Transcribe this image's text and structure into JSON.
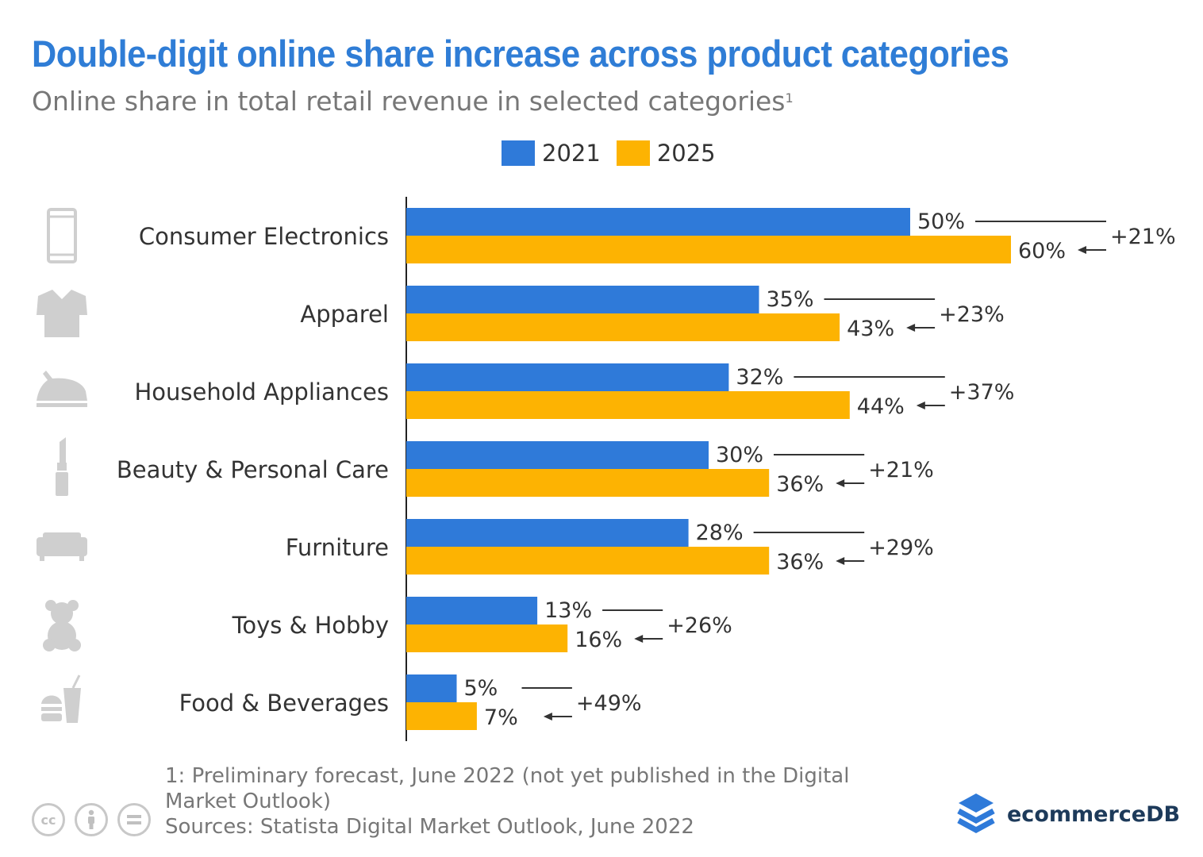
{
  "header": {
    "title": "Double-digit online share increase across product categories",
    "subtitle": "Online share in total retail revenue in selected categories",
    "subtitle_sup": "1"
  },
  "legend": {
    "items": [
      {
        "label": "2021",
        "color": "#2f7ad9"
      },
      {
        "label": "2025",
        "color": "#fdb302"
      }
    ]
  },
  "chart_data": {
    "type": "bar",
    "orientation": "horizontal",
    "categories": [
      "Consumer Electronics",
      "Apparel",
      "Household Appliances",
      "Beauty & Personal Care",
      "Furniture",
      "Toys & Hobby",
      "Food & Beverages"
    ],
    "icons": [
      "smartphone-icon",
      "shirt-icon",
      "iron-icon",
      "lipstick-icon",
      "sofa-icon",
      "teddy-bear-icon",
      "fast-food-icon"
    ],
    "series": [
      {
        "name": "2021",
        "color": "#2f7ad9",
        "values": [
          50,
          35,
          32,
          30,
          28,
          13,
          5
        ],
        "labels": [
          "50%",
          "35%",
          "32%",
          "30%",
          "28%",
          "13%",
          "5%"
        ]
      },
      {
        "name": "2025",
        "color": "#fdb302",
        "values": [
          60,
          43,
          44,
          36,
          36,
          16,
          7
        ],
        "labels": [
          "60%",
          "43%",
          "44%",
          "36%",
          "36%",
          "16%",
          "7%"
        ]
      }
    ],
    "changes": [
      "+21%",
      "+23%",
      "+37%",
      "+21%",
      "+29%",
      "+26%",
      "+49%"
    ],
    "xlim": [
      0,
      60
    ],
    "grid": false,
    "legend_position": "top-center"
  },
  "footer": {
    "note": "1: Preliminary forecast, June 2022 (not yet published in the Digital Market Outlook)",
    "source": "Sources: Statista Digital Market Outlook, June 2022",
    "license_icons": [
      "cc-icon",
      "by-icon",
      "nd-icon"
    ],
    "brand": "ecommerceDB"
  }
}
